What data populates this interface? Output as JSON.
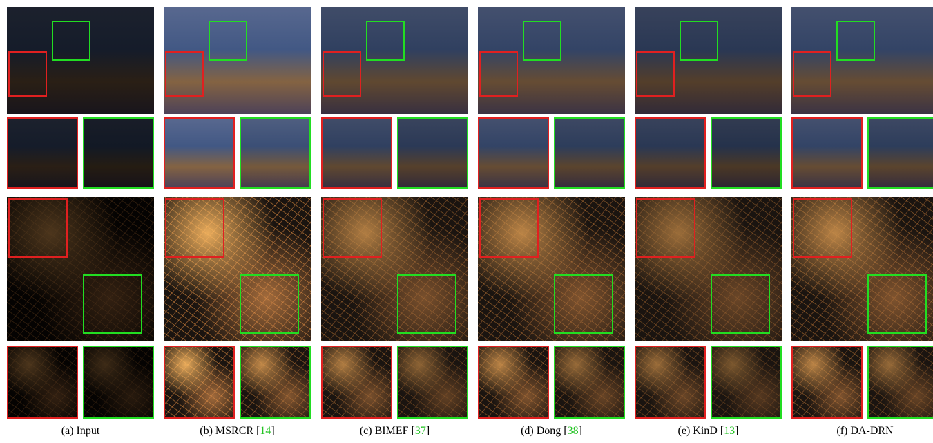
{
  "captions": [
    {
      "text": "(a) Input"
    },
    {
      "text": "(b) MSRCR ",
      "open": "[",
      "ref": "14",
      "close": "]"
    },
    {
      "text": "(c) BIMEF ",
      "open": "[",
      "ref": "37",
      "close": "]"
    },
    {
      "text": "(d) Dong ",
      "open": "[",
      "ref": "38",
      "close": "]"
    },
    {
      "text": "(e) KinD ",
      "open": "[",
      "ref": "13",
      "close": "]"
    },
    {
      "text": "(f) DA-DRN"
    }
  ]
}
